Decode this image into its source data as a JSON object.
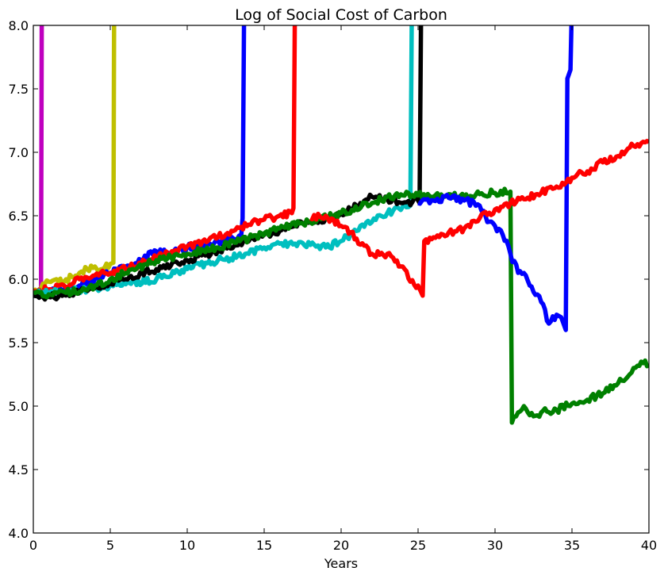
{
  "chart_data": {
    "type": "line",
    "title": "Log of Social Cost of Carbon",
    "xlabel": "Years",
    "ylabel": "",
    "xlim": [
      0,
      40
    ],
    "ylim": [
      4.0,
      8.0
    ],
    "x_ticks": [
      "0",
      "5",
      "10",
      "15",
      "20",
      "25",
      "30",
      "35",
      "40"
    ],
    "y_ticks": [
      "4.0",
      "4.5",
      "5.0",
      "5.5",
      "6.0",
      "6.5",
      "7.0",
      "7.5",
      "8.0"
    ],
    "grid": false,
    "legend": "none",
    "series": [
      {
        "color": "#bf00bf",
        "points": [
          [
            0.0,
            5.88
          ],
          [
            0.2,
            5.9
          ],
          [
            0.4,
            5.92
          ],
          [
            0.5,
            5.93
          ],
          [
            0.55,
            8.2
          ]
        ]
      },
      {
        "color": "#bfbf00",
        "points": [
          [
            0.0,
            5.9
          ],
          [
            0.5,
            5.93
          ],
          [
            1.0,
            5.98
          ],
          [
            1.5,
            6.0
          ],
          [
            2.0,
            5.98
          ],
          [
            2.5,
            6.02
          ],
          [
            3.0,
            6.05
          ],
          [
            3.5,
            6.08
          ],
          [
            4.0,
            6.1
          ],
          [
            4.5,
            6.08
          ],
          [
            5.0,
            6.12
          ],
          [
            5.2,
            6.13
          ],
          [
            5.25,
            8.2
          ]
        ]
      },
      {
        "color": "#0000ff",
        "points": [
          [
            0.0,
            5.88
          ],
          [
            1.0,
            5.9
          ],
          [
            2.0,
            5.92
          ],
          [
            3.0,
            5.95
          ],
          [
            4.0,
            6.0
          ],
          [
            5.0,
            6.05
          ],
          [
            6.0,
            6.1
          ],
          [
            7.0,
            6.15
          ],
          [
            8.0,
            6.22
          ],
          [
            9.0,
            6.2
          ],
          [
            10.0,
            6.25
          ],
          [
            11.0,
            6.25
          ],
          [
            12.0,
            6.3
          ],
          [
            13.0,
            6.32
          ],
          [
            13.5,
            6.33
          ],
          [
            13.6,
            6.48
          ],
          [
            13.7,
            8.2
          ]
        ]
      },
      {
        "color": "#ff0000",
        "points": [
          [
            0.0,
            5.9
          ],
          [
            1.0,
            5.92
          ],
          [
            2.0,
            5.95
          ],
          [
            3.0,
            6.0
          ],
          [
            4.0,
            6.03
          ],
          [
            5.0,
            6.05
          ],
          [
            6.0,
            6.08
          ],
          [
            7.0,
            6.12
          ],
          [
            8.0,
            6.17
          ],
          [
            9.0,
            6.22
          ],
          [
            10.0,
            6.26
          ],
          [
            11.0,
            6.3
          ],
          [
            12.0,
            6.33
          ],
          [
            13.0,
            6.38
          ],
          [
            14.0,
            6.43
          ],
          [
            15.0,
            6.47
          ],
          [
            16.0,
            6.5
          ],
          [
            16.8,
            6.52
          ],
          [
            16.9,
            6.56
          ],
          [
            17.0,
            8.2
          ]
        ]
      },
      {
        "color": "#00bfbf",
        "points": [
          [
            0.0,
            5.88
          ],
          [
            2.0,
            5.9
          ],
          [
            4.0,
            5.93
          ],
          [
            6.0,
            5.96
          ],
          [
            8.0,
            6.0
          ],
          [
            10.0,
            6.08
          ],
          [
            12.0,
            6.15
          ],
          [
            14.0,
            6.2
          ],
          [
            15.0,
            6.25
          ],
          [
            16.0,
            6.28
          ],
          [
            17.0,
            6.28
          ],
          [
            18.0,
            6.27
          ],
          [
            19.0,
            6.25
          ],
          [
            20.0,
            6.3
          ],
          [
            21.0,
            6.38
          ],
          [
            22.0,
            6.45
          ],
          [
            23.0,
            6.52
          ],
          [
            24.0,
            6.57
          ],
          [
            24.5,
            6.58
          ],
          [
            24.6,
            8.2
          ]
        ]
      },
      {
        "color": "#000000",
        "points": [
          [
            0.0,
            5.87
          ],
          [
            1.0,
            5.86
          ],
          [
            2.0,
            5.88
          ],
          [
            4.0,
            5.93
          ],
          [
            6.0,
            6.0
          ],
          [
            8.0,
            6.08
          ],
          [
            10.0,
            6.15
          ],
          [
            12.0,
            6.22
          ],
          [
            14.0,
            6.3
          ],
          [
            15.0,
            6.35
          ],
          [
            16.0,
            6.38
          ],
          [
            17.0,
            6.42
          ],
          [
            18.0,
            6.45
          ],
          [
            19.0,
            6.48
          ],
          [
            20.0,
            6.52
          ],
          [
            21.0,
            6.58
          ],
          [
            22.0,
            6.65
          ],
          [
            23.0,
            6.63
          ],
          [
            24.0,
            6.6
          ],
          [
            25.0,
            6.62
          ],
          [
            25.1,
            6.6
          ],
          [
            25.2,
            8.2
          ]
        ]
      },
      {
        "color": "#008000",
        "points": [
          [
            0.0,
            5.9
          ],
          [
            1.0,
            5.88
          ],
          [
            2.0,
            5.9
          ],
          [
            3.0,
            5.9
          ],
          [
            4.0,
            5.95
          ],
          [
            5.0,
            6.0
          ],
          [
            6.0,
            6.05
          ],
          [
            8.0,
            6.15
          ],
          [
            10.0,
            6.2
          ],
          [
            12.0,
            6.25
          ],
          [
            14.0,
            6.32
          ],
          [
            16.0,
            6.4
          ],
          [
            18.0,
            6.45
          ],
          [
            20.0,
            6.52
          ],
          [
            22.0,
            6.6
          ],
          [
            23.0,
            6.65
          ],
          [
            24.0,
            6.66
          ],
          [
            25.0,
            6.66
          ],
          [
            26.0,
            6.65
          ],
          [
            27.0,
            6.67
          ],
          [
            28.0,
            6.65
          ],
          [
            29.0,
            6.67
          ],
          [
            30.0,
            6.68
          ],
          [
            31.0,
            6.69
          ],
          [
            31.1,
            4.87
          ],
          [
            31.5,
            4.95
          ],
          [
            32.0,
            4.98
          ],
          [
            32.5,
            4.92
          ],
          [
            33.0,
            4.95
          ],
          [
            34.0,
            4.97
          ],
          [
            35.0,
            5.02
          ],
          [
            36.0,
            5.05
          ],
          [
            37.0,
            5.1
          ],
          [
            38.0,
            5.18
          ],
          [
            39.0,
            5.3
          ],
          [
            39.5,
            5.35
          ],
          [
            40.0,
            5.33
          ]
        ]
      },
      {
        "color": "#0000ff",
        "points": [
          [
            25.0,
            6.6
          ],
          [
            26.0,
            6.62
          ],
          [
            27.0,
            6.64
          ],
          [
            28.0,
            6.62
          ],
          [
            29.0,
            6.58
          ],
          [
            29.5,
            6.45
          ],
          [
            30.0,
            6.42
          ],
          [
            30.5,
            6.35
          ],
          [
            31.0,
            6.2
          ],
          [
            31.5,
            6.05
          ],
          [
            32.0,
            6.03
          ],
          [
            32.5,
            5.9
          ],
          [
            33.0,
            5.82
          ],
          [
            33.5,
            5.65
          ],
          [
            34.0,
            5.72
          ],
          [
            34.3,
            5.7
          ],
          [
            34.6,
            5.6
          ],
          [
            34.7,
            7.58
          ],
          [
            34.9,
            7.65
          ],
          [
            35.0,
            8.2
          ]
        ]
      },
      {
        "color": "#ff0000",
        "points": [
          [
            18.0,
            6.48
          ],
          [
            19.0,
            6.5
          ],
          [
            20.0,
            6.42
          ],
          [
            21.0,
            6.32
          ],
          [
            22.0,
            6.2
          ],
          [
            23.0,
            6.2
          ],
          [
            24.0,
            6.1
          ],
          [
            24.5,
            5.98
          ],
          [
            25.0,
            5.95
          ],
          [
            25.3,
            5.87
          ],
          [
            25.4,
            6.3
          ],
          [
            26.0,
            6.33
          ],
          [
            27.0,
            6.37
          ],
          [
            28.0,
            6.4
          ],
          [
            29.0,
            6.48
          ],
          [
            30.0,
            6.55
          ],
          [
            31.0,
            6.6
          ],
          [
            32.0,
            6.63
          ],
          [
            33.0,
            6.68
          ],
          [
            34.0,
            6.73
          ],
          [
            35.0,
            6.8
          ],
          [
            36.0,
            6.85
          ],
          [
            37.0,
            6.92
          ],
          [
            38.0,
            6.97
          ],
          [
            39.0,
            7.05
          ],
          [
            40.0,
            7.08
          ]
        ]
      }
    ]
  }
}
